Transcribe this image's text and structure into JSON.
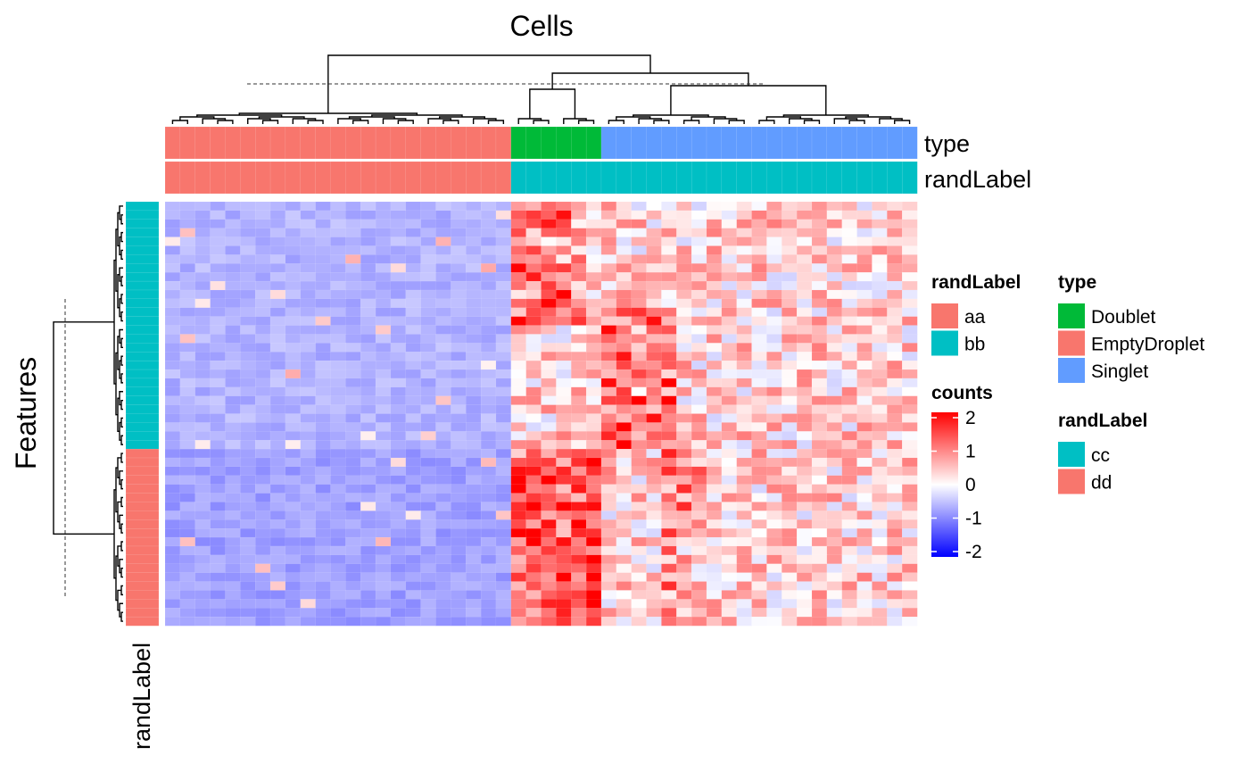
{
  "chart_data": {
    "type": "heatmap",
    "title": "Cells",
    "ylabel": "Features",
    "column_annotations": [
      {
        "name": "type",
        "segments": [
          {
            "label": "EmptyDroplet",
            "count": 23
          },
          {
            "label": "Doublet",
            "count": 6
          },
          {
            "label": "Singlet",
            "count": 21
          }
        ]
      },
      {
        "name": "randLabel",
        "segments": [
          {
            "label": "aa",
            "count": 23
          },
          {
            "label": "bb",
            "count": 27
          }
        ]
      }
    ],
    "row_annotation": {
      "name": "randLabel",
      "segments": [
        {
          "label": "cc",
          "count": 28
        },
        {
          "label": "dd",
          "count": 20
        }
      ]
    },
    "color_scale": {
      "name": "counts",
      "min": -2,
      "mid": 0,
      "max": 2,
      "low_color": "#0000ff",
      "mid_color": "#ffffff",
      "high_color": "#ff0000",
      "ticks": [
        "2",
        "1",
        "0",
        "-1",
        "-2"
      ]
    },
    "group_means": {
      "note_cells": "EmptyDroplet cells ~ -0.65; Doublet/Singlet cells positive, strongest in cells 24-30",
      "EmptyDroplet_cc": -0.6,
      "EmptyDroplet_dd": -0.75,
      "cluster_cc_hot": 1.4,
      "cluster_dd_hot": 1.5,
      "background_positive": 0.35
    },
    "legends": [
      {
        "title": "randLabel",
        "items": [
          {
            "label": "aa",
            "color": "#F8766D"
          },
          {
            "label": "bb",
            "color": "#00BFC4"
          }
        ]
      },
      {
        "title": "type",
        "items": [
          {
            "label": "Doublet",
            "color": "#00BA38"
          },
          {
            "label": "EmptyDroplet",
            "color": "#F8766D"
          },
          {
            "label": "Singlet",
            "color": "#619CFF"
          }
        ]
      },
      {
        "title": "counts",
        "items": []
      },
      {
        "title": "randLabel",
        "items": [
          {
            "label": "cc",
            "color": "#00BFC4"
          },
          {
            "label": "dd",
            "color": "#F8766D"
          }
        ]
      }
    ]
  }
}
